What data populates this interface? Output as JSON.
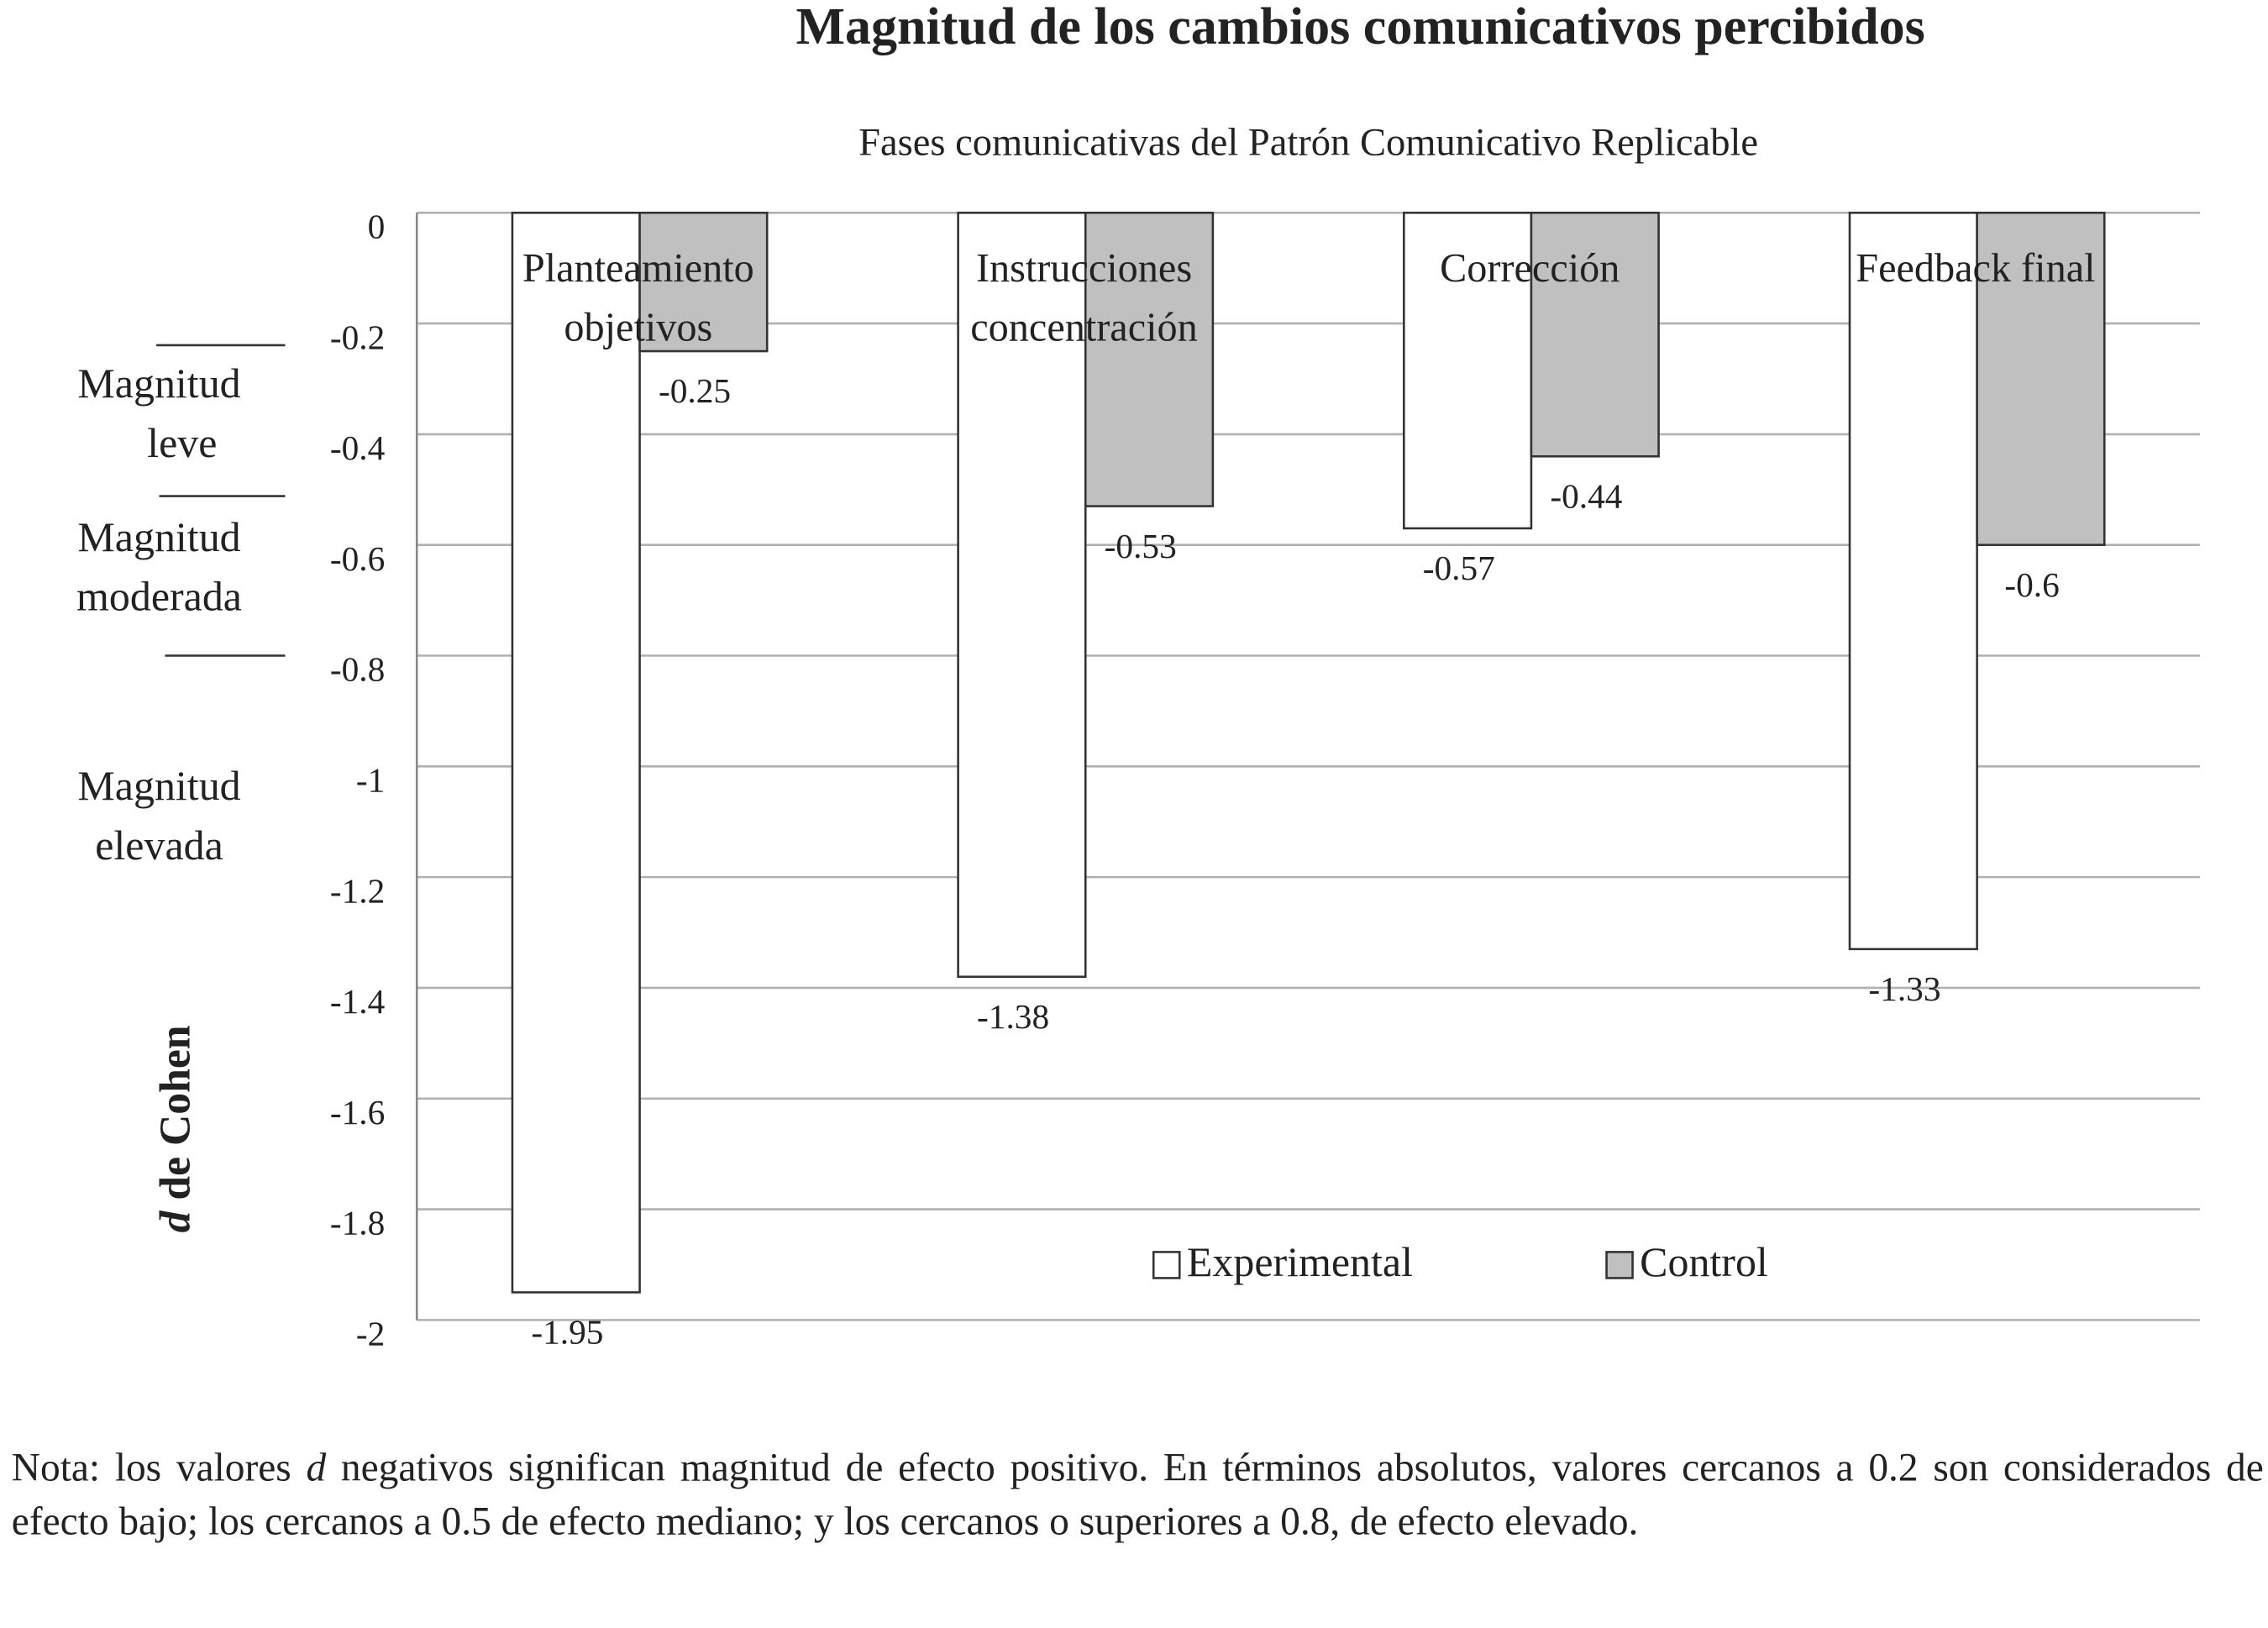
{
  "chart_data": {
    "type": "bar",
    "title": "Magnitud de los cambios comunicativos percibidos",
    "subtitle": "Fases comunicativas del Patrón Comunicativo Replicable",
    "ylabel": [
      "d",
      "de Cohen"
    ],
    "categories": [
      [
        "Planteamiento",
        "objetivos"
      ],
      [
        "Instrucciones",
        "concentración"
      ],
      [
        "Corrección"
      ],
      [
        "Feedback final"
      ]
    ],
    "series": [
      {
        "name": "Experimental",
        "color": "#ffffff",
        "values": [
          -1.95,
          -1.38,
          -0.57,
          -1.33
        ]
      },
      {
        "name": "Control",
        "color": "#c0c0c0",
        "values": [
          -0.25,
          -0.53,
          -0.44,
          -0.6
        ]
      }
    ],
    "ylim": [
      -2,
      0
    ],
    "yticks": [
      0,
      -0.2,
      -0.4,
      -0.6,
      -0.8,
      -1,
      -1.2,
      -1.4,
      -1.6,
      -1.8,
      -2
    ],
    "grid": true,
    "legend_position": "bottom",
    "thresholds": [
      -0.2,
      -0.5,
      -0.8
    ],
    "magnitude_labels": [
      [
        "Magnitud",
        "leve"
      ],
      [
        "Magnitud",
        "moderada"
      ],
      [
        "Magnitud",
        "elevada"
      ]
    ],
    "note": [
      "Nota: los valores",
      "d",
      "negativos significan magnitud de efecto positivo. En términos absolutos, valores cercanos a 0.2 son considerados de efecto bajo; los cercanos a 0.5 de efecto mediano; y los cercanos o superiores a 0.8, de efecto elevado."
    ]
  }
}
